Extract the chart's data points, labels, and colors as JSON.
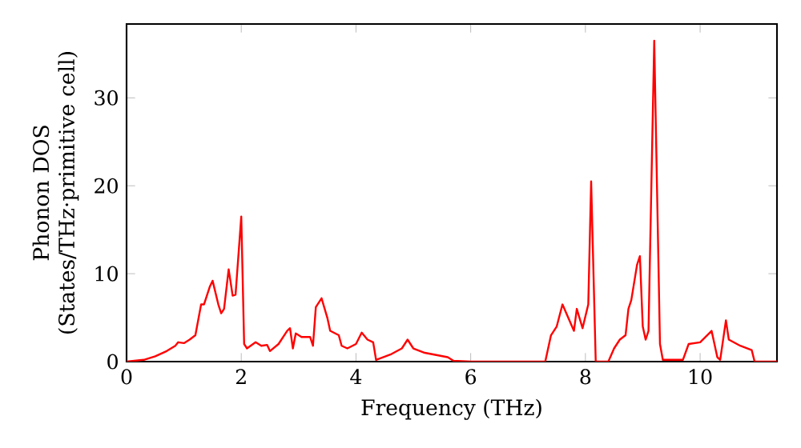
{
  "chart_data": {
    "type": "line",
    "xlabel": "Frequency (THz)",
    "ylabel": "Phonon DOS (States/THz·primitive cell)",
    "xlim": [
      0,
      11.34
    ],
    "ylim": [
      0,
      38.4
    ],
    "xticks": [
      0,
      2,
      4,
      6,
      8,
      10
    ],
    "yticks": [
      0,
      10,
      20,
      30
    ],
    "marker": "none",
    "line_style": "solid",
    "series": [
      {
        "color": "#ff0000",
        "x": [
          0,
          0.3,
          0.5,
          0.7,
          0.85,
          0.9,
          1.0,
          1.1,
          1.2,
          1.3,
          1.35,
          1.45,
          1.5,
          1.6,
          1.65,
          1.7,
          1.78,
          1.85,
          1.9,
          2.0,
          2.05,
          2.1,
          2.25,
          2.35,
          2.45,
          2.5,
          2.65,
          2.8,
          2.85,
          2.9,
          2.95,
          3.05,
          3.2,
          3.25,
          3.3,
          3.4,
          3.5,
          3.55,
          3.7,
          3.75,
          3.85,
          4.0,
          4.1,
          4.2,
          4.3,
          4.35,
          4.6,
          4.8,
          4.9,
          5.0,
          5.2,
          5.6,
          5.7,
          6,
          7.3,
          7.4,
          7.5,
          7.6,
          7.7,
          7.8,
          7.85,
          7.95,
          8.05,
          8.1,
          8.18,
          8.4,
          8.5,
          8.6,
          8.7,
          8.75,
          8.8,
          8.9,
          8.95,
          9.0,
          9.05,
          9.1,
          9.2,
          9.3,
          9.35,
          9.7,
          9.8,
          10.0,
          10.2,
          10.3,
          10.35,
          10.45,
          10.5,
          10.7,
          10.9,
          10.95,
          11.34
        ],
        "values": [
          0,
          0.2,
          0.6,
          1.2,
          1.8,
          2.2,
          2.1,
          2.5,
          3.0,
          6.5,
          6.5,
          8.5,
          9.2,
          6.5,
          5.5,
          6,
          10.5,
          7.5,
          7.6,
          16.5,
          2,
          1.5,
          2.2,
          1.8,
          1.9,
          1.2,
          2,
          3.5,
          3.8,
          1.5,
          3.2,
          2.8,
          2.8,
          1.8,
          6.2,
          7.2,
          5,
          3.5,
          3,
          1.8,
          1.5,
          2,
          3.3,
          2.5,
          2.2,
          0.2,
          0.8,
          1.5,
          2.5,
          1.5,
          1,
          0.5,
          0.1,
          0,
          0,
          3,
          4,
          6.5,
          5,
          3.5,
          6,
          3.8,
          6.5,
          20.5,
          0,
          0,
          1.5,
          2.5,
          3,
          6,
          7,
          11,
          12,
          4,
          2.5,
          3.5,
          36.5,
          2,
          0.2,
          0.2,
          2,
          2.2,
          3.5,
          0.5,
          0.2,
          4.7,
          2.5,
          1.8,
          1.3,
          0,
          0
        ]
      }
    ]
  }
}
